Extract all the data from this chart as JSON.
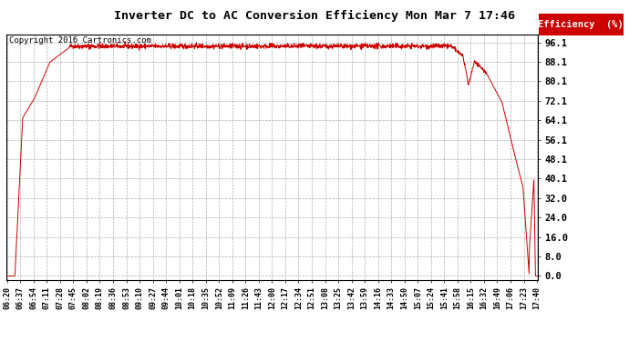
{
  "title": "Inverter DC to AC Conversion Efficiency Mon Mar 7 17:46",
  "copyright": "Copyright 2016 Cartronics.com",
  "line_color": "#cc0000",
  "background_color": "#ffffff",
  "plot_bg_color": "#ffffff",
  "grid_color": "#999999",
  "legend_bg": "#cc0000",
  "legend_text": "Efficiency  (%)",
  "yticks": [
    0.0,
    8.0,
    16.0,
    24.0,
    32.0,
    40.1,
    48.1,
    56.1,
    64.1,
    72.1,
    80.1,
    88.1,
    96.1
  ],
  "ymin": -1.5,
  "ymax": 99.5,
  "xtick_labels": [
    "06:20",
    "06:37",
    "06:54",
    "07:11",
    "07:28",
    "07:45",
    "08:02",
    "08:19",
    "08:36",
    "08:53",
    "09:10",
    "09:27",
    "09:44",
    "10:01",
    "10:18",
    "10:35",
    "10:52",
    "11:09",
    "11:26",
    "11:43",
    "12:00",
    "12:17",
    "12:34",
    "12:51",
    "13:08",
    "13:25",
    "13:42",
    "13:59",
    "14:16",
    "14:33",
    "14:50",
    "15:07",
    "15:24",
    "15:41",
    "15:58",
    "16:15",
    "16:32",
    "16:49",
    "17:06",
    "17:23",
    "17:40"
  ],
  "figsize": [
    6.9,
    3.75
  ],
  "dpi": 100
}
